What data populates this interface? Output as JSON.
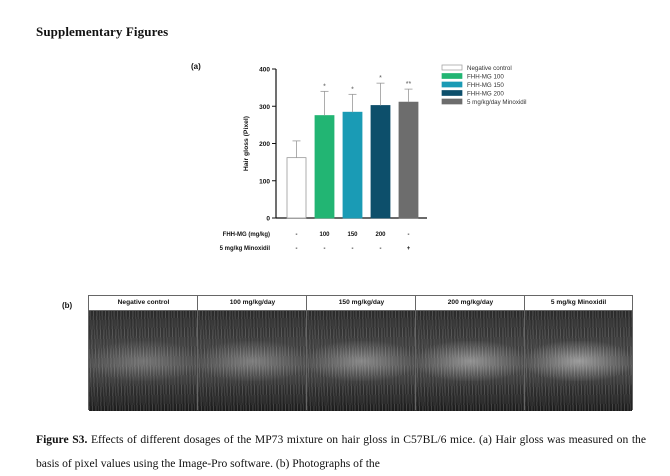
{
  "heading": "Supplementary Figures",
  "panel_a_label": "(a)",
  "panel_b_label": "(b)",
  "chart_data": {
    "type": "bar",
    "ylabel": "Hair gloss (Pixel)",
    "ylim": [
      0,
      400
    ],
    "yticks": [
      "0",
      "100",
      "200",
      "300",
      "400"
    ],
    "categories": [
      "Negative control",
      "FHH-MG 100",
      "FHH-MG 150",
      "FHH-MG 200",
      "5 mg/kg/day Minoxidil"
    ],
    "values": [
      162,
      275,
      284,
      302,
      311
    ],
    "errors": [
      45,
      65,
      48,
      60,
      35
    ],
    "significance": [
      "",
      "*",
      "*",
      "*",
      "**"
    ],
    "colors": [
      "#ffffff",
      "#22b573",
      "#1a9bb5",
      "#0d4f6b",
      "#6d6d6d"
    ],
    "legend": [
      "Negative  control",
      "FHH-MG  100",
      "FHH-MG  150",
      "FHH-MG  200",
      "5 mg/kg/day Minoxidil"
    ],
    "legend_position": "right",
    "table_rows": [
      {
        "label": "FHH-MG (mg/kg)",
        "values": [
          "-",
          "100",
          "150",
          "200",
          "-"
        ]
      },
      {
        "label": "5 mg/kg Minoxidil",
        "values": [
          "-",
          "-",
          "-",
          "-",
          "+"
        ]
      }
    ]
  },
  "photos": {
    "headers": [
      "Negative control",
      "100 mg/kg/day",
      "150 mg/kg/day",
      "200 mg/kg/day",
      "5 mg/kg Minoxidil"
    ]
  },
  "caption": {
    "label": "Figure S3.",
    "text": " Effects of different dosages of the MP73 mixture on hair gloss in C57BL/6 mice. (a) Hair gloss was measured on the basis of pixel values using the Image-Pro software. (b) Photographs of the"
  }
}
